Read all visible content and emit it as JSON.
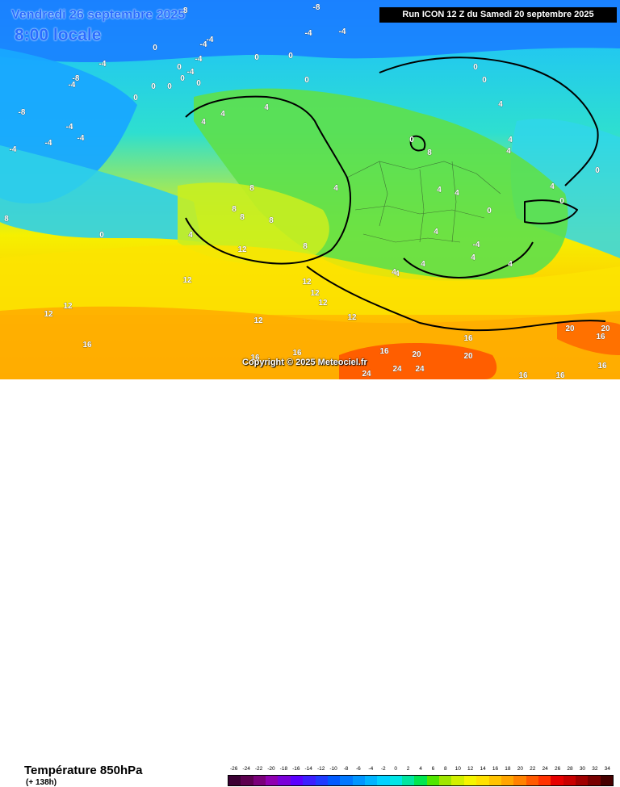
{
  "header": {
    "date": "Vendredi 26 septembre 2025",
    "time": "8:00 locale",
    "run": "Run ICON 12 Z du Samedi 20 septembre 2025"
  },
  "copyright": "Copyright © 2025 Meteociel.fr",
  "footer": {
    "title": "Température 850hPa",
    "subtitle": "(+ 138h)"
  },
  "scale": {
    "labels": [
      "-26",
      "-24",
      "-22",
      "-20",
      "-18",
      "-16",
      "-14",
      "-12",
      "-10",
      "-8",
      "-6",
      "-4",
      "-2",
      "0",
      "2",
      "4",
      "6",
      "8",
      "10",
      "12",
      "14",
      "16",
      "18",
      "20",
      "22",
      "24",
      "26",
      "28",
      "30",
      "32",
      "34"
    ],
    "colors": [
      "#3b0033",
      "#5c004f",
      "#7a007a",
      "#8f00b0",
      "#7a00d9",
      "#5a00ff",
      "#3b1fff",
      "#1f3bff",
      "#005aff",
      "#0078ff",
      "#0096ff",
      "#00b4ff",
      "#00d2ff",
      "#00e6e6",
      "#00e6a0",
      "#00e650",
      "#50e600",
      "#a0e600",
      "#d2f000",
      "#f5f500",
      "#ffe100",
      "#ffc300",
      "#ffa500",
      "#ff8200",
      "#ff5a00",
      "#ff3200",
      "#e60000",
      "#c80000",
      "#a00000",
      "#780000",
      "#460000"
    ]
  },
  "map_labels": [
    {
      "text": "-8"
    },
    {
      "text": "-8"
    },
    {
      "text": "0"
    },
    {
      "text": "-4"
    },
    {
      "text": "-4"
    },
    {
      "text": "-4"
    },
    {
      "text": "-4"
    },
    {
      "text": "-4"
    },
    {
      "text": "-4"
    },
    {
      "text": "0"
    },
    {
      "text": "0"
    },
    {
      "text": "0"
    },
    {
      "text": "0"
    },
    {
      "text": "-4"
    },
    {
      "text": "0"
    },
    {
      "text": "0"
    },
    {
      "text": "-4"
    },
    {
      "text": "-8"
    },
    {
      "text": "0"
    },
    {
      "text": "0"
    },
    {
      "text": "0"
    },
    {
      "text": "0"
    },
    {
      "text": "-8"
    },
    {
      "text": "-4"
    },
    {
      "text": "4"
    },
    {
      "text": "4"
    },
    {
      "text": "4"
    },
    {
      "text": "0"
    },
    {
      "text": "4"
    },
    {
      "text": "4"
    },
    {
      "text": "0"
    },
    {
      "text": "4"
    },
    {
      "text": "-4"
    },
    {
      "text": "-4"
    },
    {
      "text": "-4"
    },
    {
      "text": "4"
    },
    {
      "text": "4"
    },
    {
      "text": "8"
    },
    {
      "text": "4"
    },
    {
      "text": "0"
    },
    {
      "text": "4"
    },
    {
      "text": "4"
    },
    {
      "text": "4"
    },
    {
      "text": "0"
    },
    {
      "text": "0"
    },
    {
      "text": "-4"
    },
    {
      "text": "8"
    },
    {
      "text": "8"
    },
    {
      "text": "8"
    },
    {
      "text": "4"
    },
    {
      "text": "4"
    },
    {
      "text": "8"
    },
    {
      "text": "8"
    },
    {
      "text": "4"
    },
    {
      "text": "4"
    },
    {
      "text": "0"
    },
    {
      "text": "12"
    },
    {
      "text": "12"
    },
    {
      "text": "12"
    },
    {
      "text": "12"
    },
    {
      "text": "12"
    },
    {
      "text": "12"
    },
    {
      "text": "16"
    },
    {
      "text": "16"
    },
    {
      "text": "16"
    },
    {
      "text": "12"
    },
    {
      "text": "16"
    },
    {
      "text": "20"
    },
    {
      "text": "24"
    },
    {
      "text": "24"
    },
    {
      "text": "24"
    },
    {
      "text": "20"
    },
    {
      "text": "16"
    },
    {
      "text": "20"
    },
    {
      "text": "20"
    },
    {
      "text": "16"
    },
    {
      "text": "16"
    },
    {
      "text": "16"
    },
    {
      "text": "16"
    },
    {
      "text": "4"
    },
    {
      "text": "8"
    },
    {
      "text": "12"
    },
    {
      "text": "12"
    }
  ]
}
